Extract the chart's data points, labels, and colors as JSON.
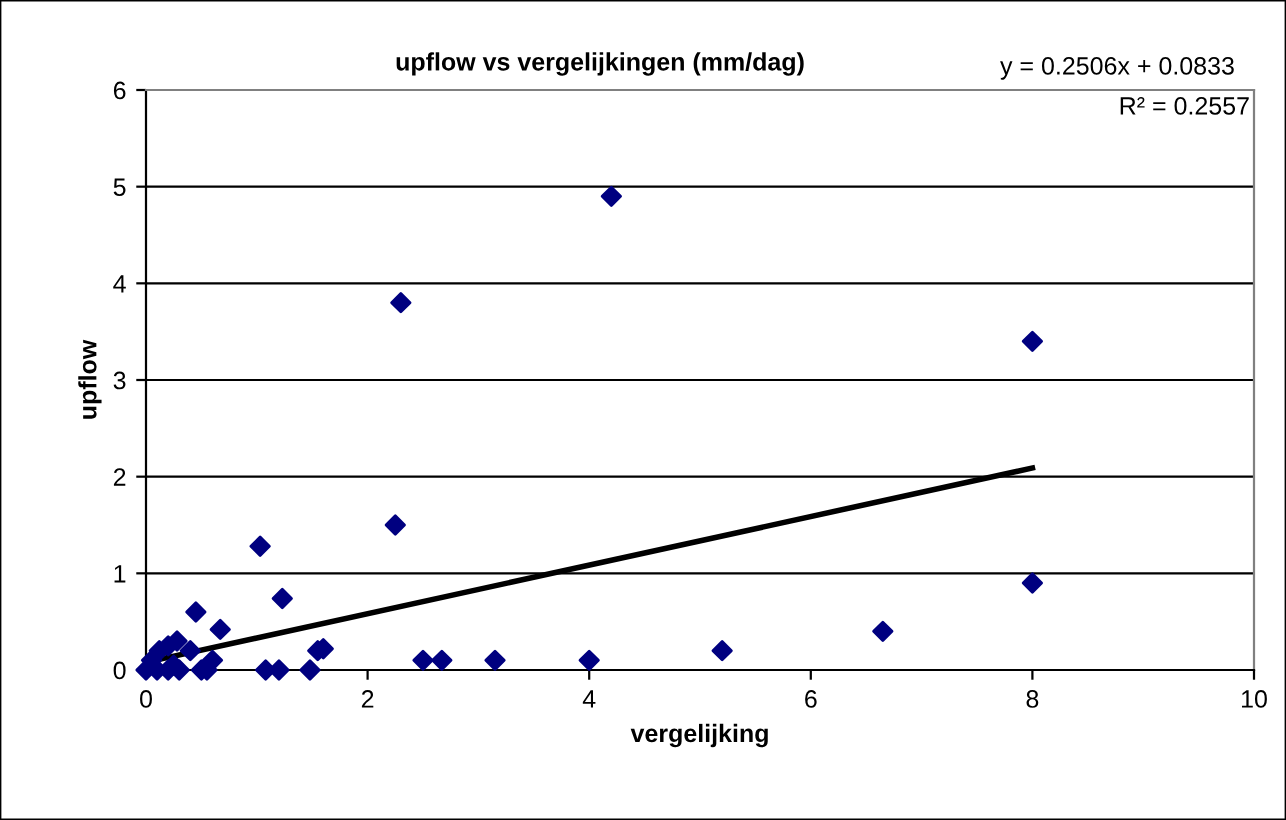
{
  "chart_data": {
    "type": "scatter",
    "title": "upflow vs vergelijkingen (mm/dag)",
    "xlabel": "vergelijking",
    "ylabel": "upflow",
    "xlim": [
      0,
      10
    ],
    "xticks": [
      0,
      2,
      4,
      6,
      8,
      10
    ],
    "ylim": [
      0,
      6
    ],
    "yticks": [
      0,
      1,
      2,
      3,
      4,
      5,
      6
    ],
    "grid": "y",
    "legend": false,
    "marker": "diamond",
    "annotations": [
      "y = 0.2506x + 0.0833",
      "R² = 0.2557"
    ],
    "series": [
      {
        "color": "#000080",
        "x": [
          4.2,
          2.3,
          8,
          2.25,
          8,
          6.65,
          5.2,
          4.0,
          3.15,
          2.67,
          2.5,
          1.03,
          1.23,
          1.08,
          1.2,
          1.48,
          1.55,
          1.6,
          0.45,
          0.67,
          0.4,
          0.28,
          0.2,
          0.12,
          0.05,
          0,
          0.1,
          0.2,
          0.3,
          0.5,
          0.55,
          0.6,
          0.25
        ],
        "values": [
          4.9,
          3.8,
          3.4,
          1.5,
          0.9,
          0.4,
          0.2,
          0.1,
          0.1,
          0.1,
          0.1,
          1.28,
          0.74,
          0,
          0,
          0,
          0.2,
          0.22,
          0.6,
          0.42,
          0.2,
          0.3,
          0.25,
          0.2,
          0.1,
          0,
          0,
          0,
          0,
          0,
          0,
          0.1,
          0.05
        ]
      },
      {
        "type": "line",
        "color": "#000000",
        "marker": "none",
        "x": [
          0,
          8
        ],
        "values": [
          0.08,
          2.09
        ]
      }
    ]
  }
}
